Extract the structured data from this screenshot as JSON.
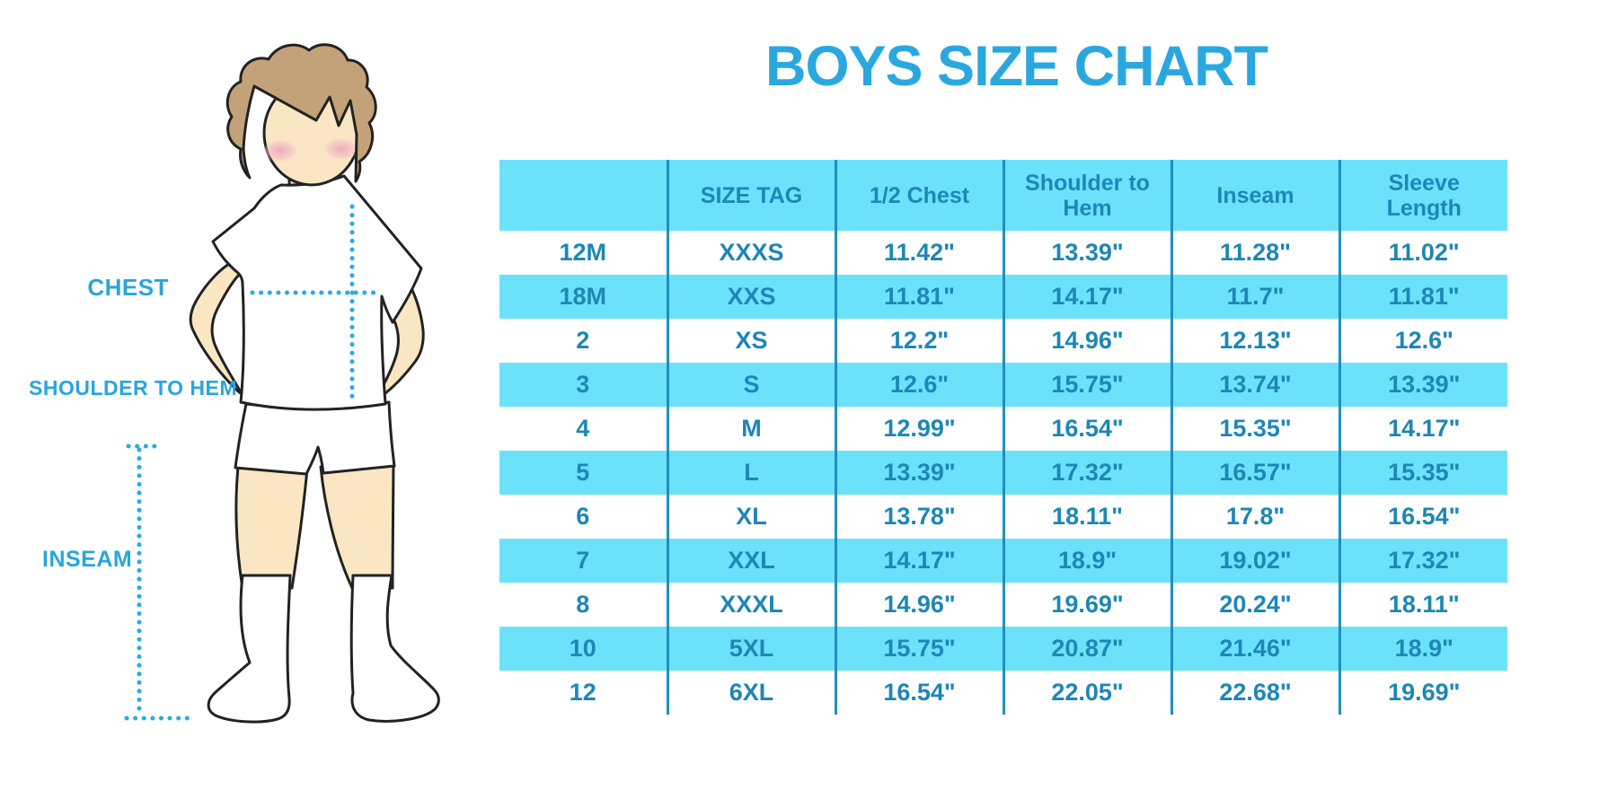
{
  "title": "BOYS SIZE CHART",
  "colors": {
    "accent_blue": "#29a5de",
    "table_text_blue": "#1d87b5",
    "band_cyan": "#6ce1fa",
    "divider_blue": "#1e8fc2",
    "dotted_line_blue": "#2aabe3",
    "skin": "#fae6c3",
    "hair_brown": "#c4a279",
    "blush_pink": "#efa8b8"
  },
  "figure_labels": {
    "chest": "CHEST",
    "shoulder_to_hem": "SHOULDER TO HEM",
    "inseam": "INSEAM"
  },
  "chart_data": {
    "type": "table",
    "title": "BOYS SIZE CHART",
    "columns": [
      "",
      "SIZE TAG",
      "1/2 Chest",
      "Shoulder to Hem",
      "Inseam",
      "Sleeve Length"
    ],
    "rows": [
      [
        "12M",
        "XXXS",
        "11.42\"",
        "13.39\"",
        "11.28\"",
        "11.02\""
      ],
      [
        "18M",
        "XXS",
        "11.81\"",
        "14.17\"",
        "11.7\"",
        "11.81\""
      ],
      [
        "2",
        "XS",
        "12.2\"",
        "14.96\"",
        "12.13\"",
        "12.6\""
      ],
      [
        "3",
        "S",
        "12.6\"",
        "15.75\"",
        "13.74\"",
        "13.39\""
      ],
      [
        "4",
        "M",
        "12.99\"",
        "16.54\"",
        "15.35\"",
        "14.17\""
      ],
      [
        "5",
        "L",
        "13.39\"",
        "17.32\"",
        "16.57\"",
        "15.35\""
      ],
      [
        "6",
        "XL",
        "13.78\"",
        "18.11\"",
        "17.8\"",
        "16.54\""
      ],
      [
        "7",
        "XXL",
        "14.17\"",
        "18.9\"",
        "19.02\"",
        "17.32\""
      ],
      [
        "8",
        "XXXL",
        "14.96\"",
        "19.69\"",
        "20.24\"",
        "18.11\""
      ],
      [
        "10",
        "5XL",
        "15.75\"",
        "20.87\"",
        "21.46\"",
        "18.9\""
      ],
      [
        "12",
        "6XL",
        "16.54\"",
        "22.05\"",
        "22.68\"",
        "19.69\""
      ]
    ]
  }
}
